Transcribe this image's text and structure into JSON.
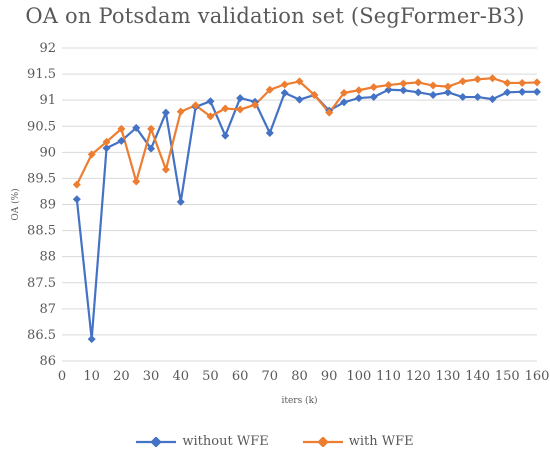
{
  "chart_data": {
    "type": "line",
    "title": "OA on Potsdam validation set (SegFormer-B3)",
    "xlabel": "iters (k)",
    "ylabel": "OA (%)",
    "xlim": [
      0,
      160
    ],
    "ylim": [
      86,
      92
    ],
    "xticks": [
      "0",
      "10",
      "20",
      "30",
      "40",
      "50",
      "60",
      "70",
      "80",
      "90",
      "100",
      "110",
      "120",
      "130",
      "140",
      "150",
      "160"
    ],
    "yticks": [
      "86",
      "86.5",
      "87",
      "87.5",
      "88",
      "88.5",
      "89",
      "89.5",
      "90",
      "90.5",
      "91",
      "91.5",
      "92"
    ],
    "grid": "horizontal",
    "legend_position": "bottom",
    "x": [
      5,
      10,
      15,
      20,
      25,
      30,
      35,
      40,
      45,
      50,
      55,
      60,
      65,
      70,
      75,
      80,
      85,
      90,
      95,
      100,
      105,
      110,
      115,
      120,
      125,
      130,
      135,
      140,
      145,
      150,
      155,
      160
    ],
    "series": [
      {
        "name": "without WFE",
        "color": "#4472C4",
        "marker": "diamond",
        "values": [
          89.1,
          86.42,
          90.08,
          90.22,
          90.47,
          90.07,
          90.76,
          89.05,
          90.87,
          90.98,
          90.32,
          91.04,
          90.97,
          90.37,
          91.14,
          91.01,
          91.1,
          90.8,
          90.96,
          91.04,
          91.06,
          91.2,
          91.19,
          91.15,
          91.1,
          91.15,
          91.06,
          91.06,
          91.02,
          91.15,
          91.16,
          91.16
        ]
      },
      {
        "name": "with WFE",
        "color": "#ED7D31",
        "marker": "diamond",
        "values": [
          89.38,
          89.96,
          90.2,
          90.45,
          89.44,
          90.45,
          89.67,
          90.78,
          90.9,
          90.69,
          90.84,
          90.82,
          90.91,
          91.2,
          91.3,
          91.36,
          91.1,
          90.76,
          91.14,
          91.19,
          91.25,
          91.29,
          91.32,
          91.34,
          91.28,
          91.26,
          91.36,
          91.4,
          91.42,
          91.33,
          91.33,
          91.34
        ]
      }
    ]
  }
}
